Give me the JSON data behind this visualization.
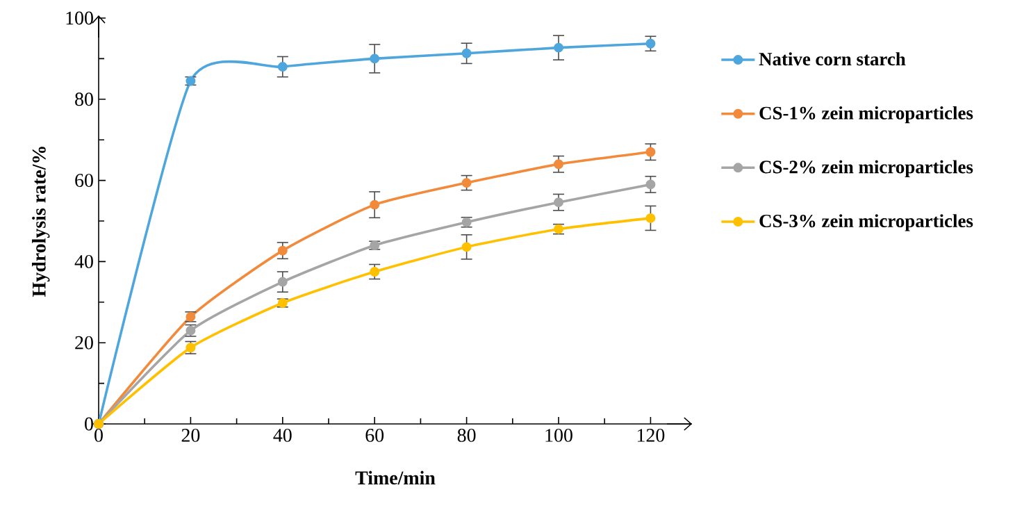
{
  "chart_data": {
    "type": "line",
    "xlabel": "Time/min",
    "ylabel": "Hydrolysis rate/%",
    "x": [
      0,
      20,
      40,
      60,
      80,
      100,
      120
    ],
    "series": [
      {
        "name": "Native corn starch",
        "color": "#4ea6dc",
        "values": [
          0,
          84.5,
          88,
          90,
          91.3,
          92.7,
          93.7
        ],
        "errors": [
          null,
          1,
          2.5,
          3.5,
          2.5,
          3,
          1.8
        ]
      },
      {
        "name": "CS-1% zein microparticles",
        "color": "#f28a3c",
        "values": [
          0,
          26.4,
          42.7,
          54,
          59.4,
          64,
          67
        ],
        "errors": [
          null,
          1.2,
          2,
          3.2,
          1.8,
          2,
          2
        ]
      },
      {
        "name": "CS-2% zein microparticles",
        "color": "#a5a5a5",
        "values": [
          0,
          23,
          35,
          44,
          49.7,
          54.6,
          59
        ],
        "errors": [
          null,
          1.4,
          2.5,
          1,
          1.2,
          2,
          2
        ]
      },
      {
        "name": "CS-3% zein microparticles",
        "color": "#ffc000",
        "values": [
          0,
          18.8,
          29.8,
          37.5,
          43.6,
          48,
          50.7
        ],
        "errors": [
          null,
          1.5,
          1,
          1.8,
          3,
          1.2,
          3
        ]
      }
    ],
    "xlim": [
      0,
      129
    ],
    "ylim": [
      0,
      100
    ],
    "xticks": [
      0,
      20,
      40,
      60,
      80,
      100,
      120
    ],
    "yticks": [
      0,
      20,
      40,
      60,
      80,
      100
    ],
    "marker": "circle",
    "line_style": "solid",
    "legend": "right",
    "grid": false
  }
}
